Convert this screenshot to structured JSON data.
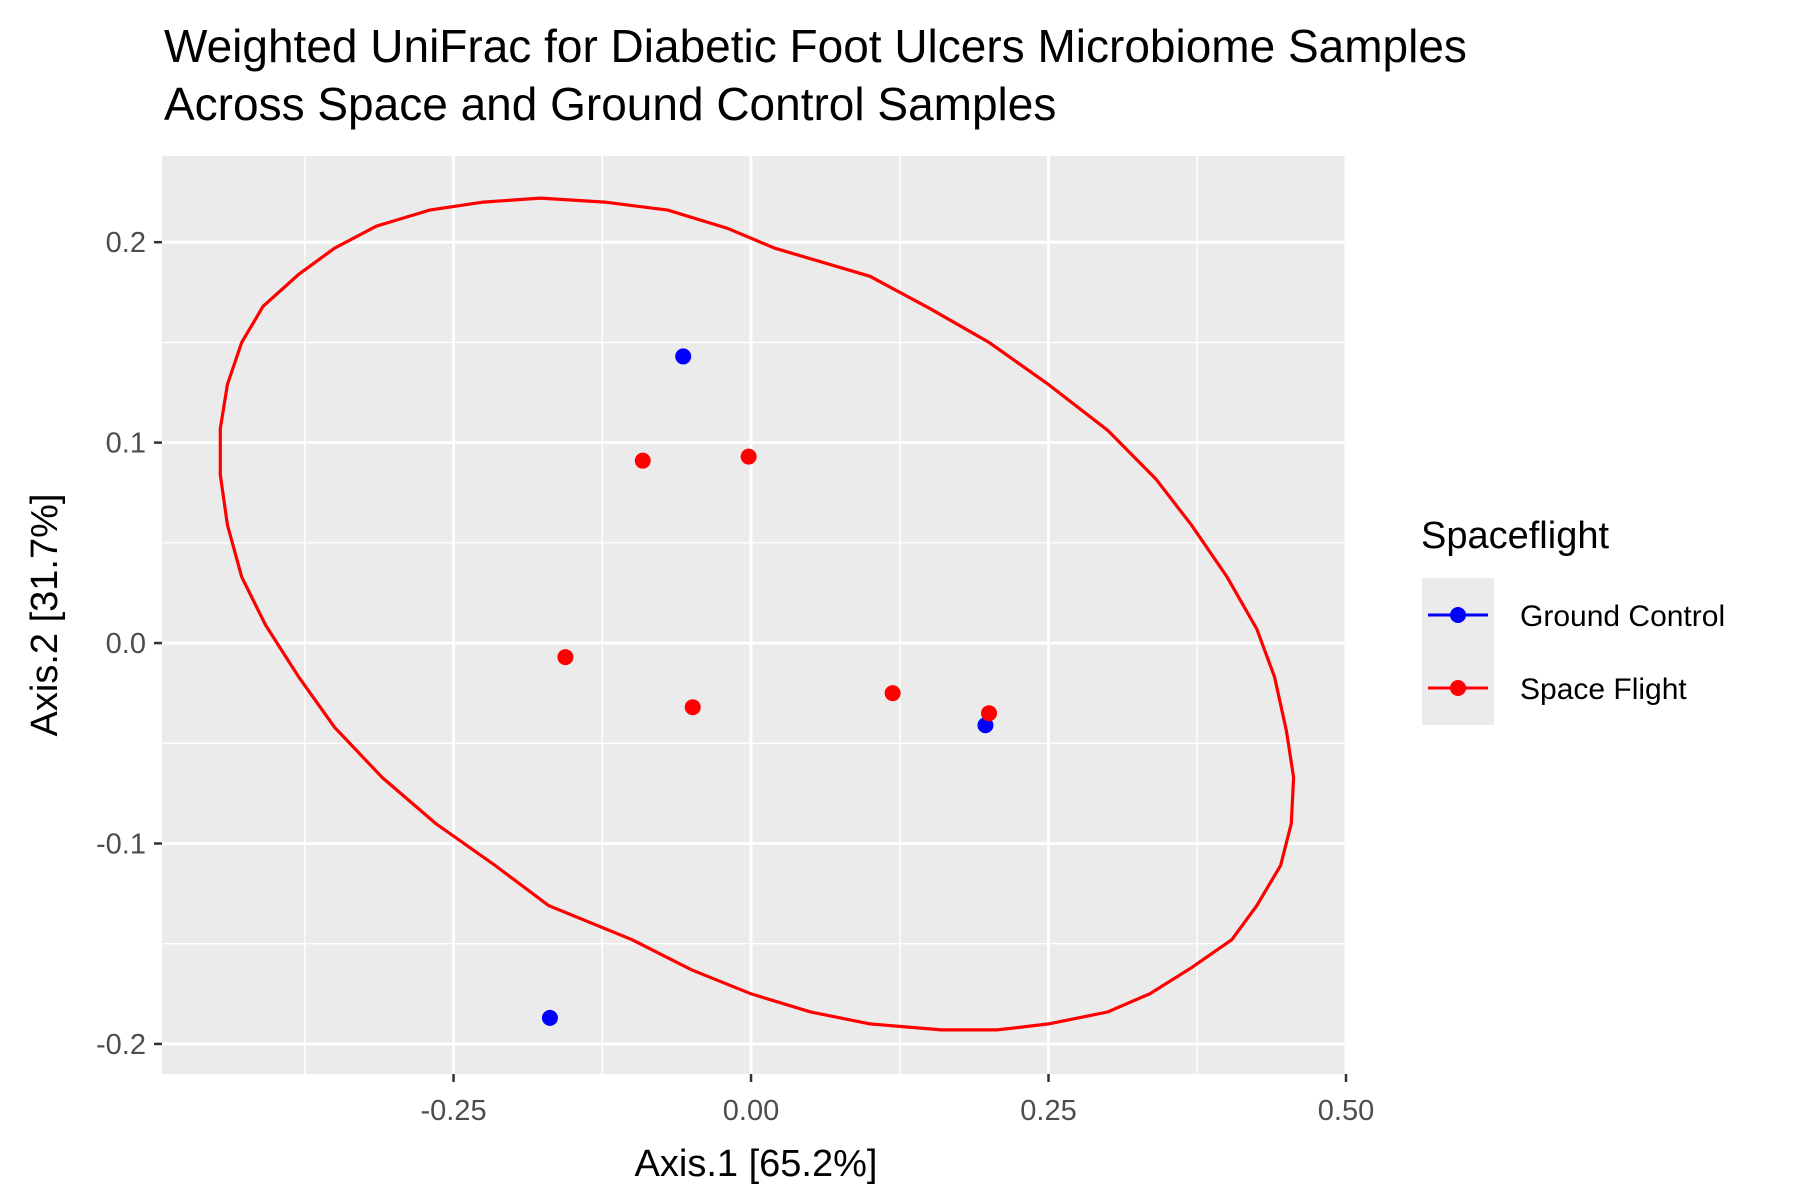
{
  "chart_data": {
    "type": "scatter",
    "title_lines": [
      "Weighted UniFrac for Diabetic Foot Ulcers Microbiome Samples",
      "Across Space and Ground Control Samples"
    ],
    "xlabel": "Axis.1   [65.2%]",
    "ylabel": "Axis.2   [31.7%]",
    "xlim": [
      -0.495,
      0.5
    ],
    "ylim": [
      -0.215,
      0.243
    ],
    "x_ticks": [
      -0.25,
      0.0,
      0.25,
      0.5
    ],
    "x_tick_labels": [
      "-0.25",
      "0.00",
      "0.25",
      "0.50"
    ],
    "y_ticks": [
      -0.2,
      -0.1,
      0.0,
      0.1,
      0.2
    ],
    "y_tick_labels": [
      "-0.2",
      "-0.1",
      "0.0",
      "0.1",
      "0.2"
    ],
    "grid": true,
    "legend": {
      "title": "Spaceflight",
      "position": "right",
      "entries": [
        {
          "label": "Ground Control",
          "color": "#0000ff"
        },
        {
          "label": "Space Flight",
          "color": "#ff0000"
        }
      ]
    },
    "series": [
      {
        "name": "Ground Control",
        "color": "#0000ff",
        "points": [
          {
            "x": -0.057,
            "y": 0.143
          },
          {
            "x": 0.197,
            "y": -0.041
          },
          {
            "x": -0.169,
            "y": -0.187
          }
        ]
      },
      {
        "name": "Space Flight",
        "color": "#ff0000",
        "points": [
          {
            "x": -0.091,
            "y": 0.091
          },
          {
            "x": -0.002,
            "y": 0.093
          },
          {
            "x": -0.156,
            "y": -0.007
          },
          {
            "x": -0.049,
            "y": -0.032
          },
          {
            "x": 0.119,
            "y": -0.025
          },
          {
            "x": 0.2,
            "y": -0.035
          }
        ]
      }
    ],
    "ellipse": {
      "series": "Space Flight",
      "color": "#ff0000",
      "points": [
        [
          -0.177,
          0.222
        ],
        [
          -0.123,
          0.22
        ],
        [
          -0.07,
          0.216
        ],
        [
          -0.02,
          0.207
        ],
        [
          0.02,
          0.197
        ],
        [
          0.1,
          0.183
        ],
        [
          0.15,
          0.167
        ],
        [
          0.2,
          0.15
        ],
        [
          0.25,
          0.129
        ],
        [
          0.3,
          0.106
        ],
        [
          0.34,
          0.082
        ],
        [
          0.37,
          0.059
        ],
        [
          0.4,
          0.033
        ],
        [
          0.425,
          0.007
        ],
        [
          0.44,
          -0.017
        ],
        [
          0.45,
          -0.044
        ],
        [
          0.456,
          -0.067
        ],
        [
          0.454,
          -0.09
        ],
        [
          0.445,
          -0.111
        ],
        [
          0.425,
          -0.131
        ],
        [
          0.404,
          -0.148
        ],
        [
          0.37,
          -0.162
        ],
        [
          0.335,
          -0.175
        ],
        [
          0.3,
          -0.184
        ],
        [
          0.25,
          -0.19
        ],
        [
          0.207,
          -0.193
        ],
        [
          0.16,
          -0.193
        ],
        [
          0.1,
          -0.19
        ],
        [
          0.05,
          -0.184
        ],
        [
          0.0,
          -0.175
        ],
        [
          -0.05,
          -0.163
        ],
        [
          -0.1,
          -0.148
        ],
        [
          -0.17,
          -0.131
        ],
        [
          -0.215,
          -0.111
        ],
        [
          -0.265,
          -0.09
        ],
        [
          -0.31,
          -0.067
        ],
        [
          -0.35,
          -0.042
        ],
        [
          -0.38,
          -0.017
        ],
        [
          -0.408,
          0.009
        ],
        [
          -0.428,
          0.033
        ],
        [
          -0.44,
          0.059
        ],
        [
          -0.446,
          0.084
        ],
        [
          -0.446,
          0.107
        ],
        [
          -0.44,
          0.129
        ],
        [
          -0.428,
          0.15
        ],
        [
          -0.41,
          0.168
        ],
        [
          -0.38,
          0.184
        ],
        [
          -0.35,
          0.197
        ],
        [
          -0.315,
          0.208
        ],
        [
          -0.27,
          0.216
        ],
        [
          -0.225,
          0.22
        ],
        [
          -0.177,
          0.222
        ]
      ]
    }
  }
}
